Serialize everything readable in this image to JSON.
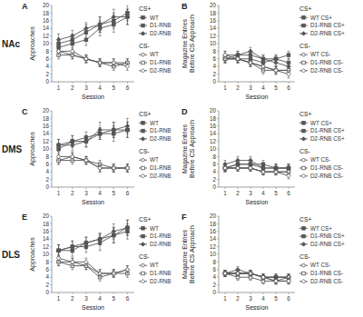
{
  "chart_data": [
    {
      "type": "line",
      "title": "A",
      "subtitle": "NAc",
      "xlabel": "Session",
      "ylabel": "Approaches",
      "x": [
        1,
        2,
        3,
        4,
        5,
        6
      ],
      "xlim": [
        0.5,
        6.5
      ],
      "xticks": [
        1,
        2,
        3,
        4,
        5,
        6
      ],
      "ylim": [
        0,
        20
      ],
      "yticks": [
        0,
        2,
        4,
        6,
        8,
        10,
        12,
        14,
        16,
        18,
        20
      ],
      "grid": false,
      "legend": "right",
      "annotations": [
        "CS+",
        "CS-"
      ],
      "series": [
        {
          "name": "WT",
          "color": "#555555",
          "marker": "square",
          "values": [
            9,
            10,
            11,
            14,
            15,
            17
          ],
          "errors": [
            1.5,
            1.5,
            1.5,
            2,
            2,
            2
          ]
        },
        {
          "name": "D1-RNB",
          "color": "#555555",
          "marker": "square",
          "values": [
            10,
            11,
            13,
            15,
            16,
            18
          ],
          "errors": [
            1.5,
            1.5,
            2,
            2,
            2,
            2
          ]
        },
        {
          "name": "D2-RNB",
          "color": "#555555",
          "marker": "diamond",
          "values": [
            11,
            12,
            14,
            15,
            17,
            17
          ],
          "errors": [
            1.5,
            1.5,
            1.5,
            2,
            2,
            2
          ]
        },
        {
          "name": "WT",
          "color": "#555555",
          "marker": "circle-open",
          "values": [
            8,
            7,
            6,
            5,
            5,
            5
          ],
          "errors": [
            1,
            1,
            1,
            1,
            1,
            1
          ]
        },
        {
          "name": "D1-RNB",
          "color": "#555555",
          "marker": "square-open",
          "values": [
            7,
            7,
            6,
            5,
            4,
            5
          ],
          "errors": [
            1,
            1,
            1,
            1,
            1,
            1
          ]
        },
        {
          "name": "D2-RNB",
          "color": "#555555",
          "marker": "diamond-open",
          "values": [
            8,
            8,
            6,
            5,
            5,
            4
          ],
          "errors": [
            1,
            1,
            1,
            1,
            1,
            1
          ]
        }
      ]
    },
    {
      "type": "line",
      "title": "B",
      "xlabel": "Session",
      "ylabel": "Magazine Entries\nBefore CS Approach",
      "x": [
        1,
        2,
        3,
        4,
        5,
        6
      ],
      "xlim": [
        0.5,
        6.5
      ],
      "xticks": [
        1,
        2,
        3,
        4,
        5,
        6
      ],
      "ylim": [
        0,
        20
      ],
      "yticks": [
        0,
        2,
        4,
        6,
        8,
        10,
        12,
        14,
        16,
        18,
        20
      ],
      "grid": false,
      "legend": "right",
      "annotations": [
        "CS+",
        "CS-"
      ],
      "series": [
        {
          "name": "WT CS+",
          "color": "#555555",
          "marker": "square",
          "values": [
            6,
            6,
            6,
            5,
            6,
            7
          ],
          "errors": [
            1,
            1,
            1,
            1,
            1,
            1
          ]
        },
        {
          "name": "D1-RNB CS+",
          "color": "#555555",
          "marker": "square",
          "values": [
            6,
            7,
            7,
            6,
            6,
            5
          ],
          "errors": [
            1,
            1,
            1,
            1,
            1,
            1
          ]
        },
        {
          "name": "D2-RNB CS+",
          "color": "#555555",
          "marker": "diamond",
          "values": [
            7,
            7,
            8,
            6,
            5,
            4
          ],
          "errors": [
            1,
            1,
            1,
            1,
            1,
            1
          ]
        },
        {
          "name": "WT CS-",
          "color": "#555555",
          "marker": "circle-open",
          "values": [
            6,
            6,
            5,
            4,
            3,
            3
          ],
          "errors": [
            1,
            1,
            1,
            1,
            1,
            1
          ]
        },
        {
          "name": "D1-RNB CS-",
          "color": "#555555",
          "marker": "square-open",
          "values": [
            6,
            6,
            5,
            3,
            3,
            3
          ],
          "errors": [
            1,
            1,
            1,
            1,
            1,
            1
          ]
        },
        {
          "name": "D2-RNB CS-",
          "color": "#555555",
          "marker": "diamond-open",
          "values": [
            7,
            6,
            5,
            4,
            3,
            2
          ],
          "errors": [
            1,
            1,
            1,
            1,
            1,
            1
          ]
        }
      ]
    },
    {
      "type": "line",
      "title": "C",
      "subtitle": "DMS",
      "xlabel": "Session",
      "ylabel": "Approaches",
      "x": [
        1,
        2,
        3,
        4,
        5,
        6
      ],
      "xlim": [
        0.5,
        6.5
      ],
      "xticks": [
        1,
        2,
        3,
        4,
        5,
        6
      ],
      "ylim": [
        0,
        20
      ],
      "yticks": [
        0,
        2,
        4,
        6,
        8,
        10,
        12,
        14,
        16,
        18,
        20
      ],
      "grid": false,
      "legend": "right",
      "annotations": [
        "CS+",
        "CS-"
      ],
      "series": [
        {
          "name": "WT",
          "color": "#555555",
          "marker": "square",
          "values": [
            11,
            12,
            12,
            14,
            15,
            15
          ],
          "errors": [
            1.5,
            1.5,
            1.5,
            1.5,
            2,
            2
          ]
        },
        {
          "name": "D1-RNB",
          "color": "#555555",
          "marker": "square",
          "values": [
            10,
            12,
            13,
            14,
            14,
            15
          ],
          "errors": [
            1.5,
            1.5,
            1.5,
            1.5,
            2,
            2
          ]
        },
        {
          "name": "D2-RNB",
          "color": "#555555",
          "marker": "diamond",
          "values": [
            11,
            11,
            12,
            15,
            15,
            16
          ],
          "errors": [
            1.5,
            1.5,
            1.5,
            2,
            2,
            2
          ]
        },
        {
          "name": "WT",
          "color": "#555555",
          "marker": "circle-open",
          "values": [
            7,
            8,
            7,
            5,
            5,
            5
          ],
          "errors": [
            1,
            1,
            1,
            1,
            1,
            1
          ]
        },
        {
          "name": "D1-RNB",
          "color": "#555555",
          "marker": "square-open",
          "values": [
            7,
            7,
            7,
            6,
            5,
            5
          ],
          "errors": [
            1,
            1,
            1,
            1,
            1,
            1
          ]
        },
        {
          "name": "D2-RNB",
          "color": "#555555",
          "marker": "diamond-open",
          "values": [
            8,
            8,
            7,
            5,
            5,
            5
          ],
          "errors": [
            1,
            1,
            1,
            1,
            1,
            1
          ]
        }
      ]
    },
    {
      "type": "line",
      "title": "D",
      "xlabel": "Session",
      "ylabel": "Magazine Entries\nBefore CS Approach",
      "x": [
        1,
        2,
        3,
        4,
        5,
        6
      ],
      "xlim": [
        0.5,
        6.5
      ],
      "xticks": [
        1,
        2,
        3,
        4,
        5,
        6
      ],
      "ylim": [
        0,
        20
      ],
      "yticks": [
        0,
        2,
        4,
        6,
        8,
        10,
        12,
        14,
        16,
        18,
        20
      ],
      "grid": false,
      "legend": "right",
      "annotations": [
        "CS+",
        "CS-"
      ],
      "series": [
        {
          "name": "WT CS+",
          "color": "#555555",
          "marker": "square",
          "values": [
            5,
            6,
            6,
            5,
            5,
            5
          ],
          "errors": [
            1,
            1,
            1,
            1,
            1,
            1
          ]
        },
        {
          "name": "D1-RNB CS+",
          "color": "#555555",
          "marker": "square",
          "values": [
            5,
            6,
            6,
            6,
            5,
            5
          ],
          "errors": [
            1,
            1,
            1,
            1,
            1,
            1
          ]
        },
        {
          "name": "D2-RNB CS+",
          "color": "#555555",
          "marker": "diamond",
          "values": [
            6,
            7,
            7,
            5,
            5,
            5
          ],
          "errors": [
            1,
            1,
            1,
            1,
            1,
            1
          ]
        },
        {
          "name": "WT CS-",
          "color": "#555555",
          "marker": "circle-open",
          "values": [
            5,
            5,
            5,
            4,
            4,
            4
          ],
          "errors": [
            0.8,
            0.8,
            0.8,
            0.8,
            0.8,
            0.8
          ]
        },
        {
          "name": "D1-RNB CS-",
          "color": "#555555",
          "marker": "square-open",
          "values": [
            5,
            5,
            5,
            4,
            4,
            4
          ],
          "errors": [
            0.8,
            0.8,
            0.8,
            0.8,
            0.8,
            0.8
          ]
        },
        {
          "name": "D2-RNB CS-",
          "color": "#555555",
          "marker": "diamond-open",
          "values": [
            5,
            5,
            5,
            4,
            4,
            3
          ],
          "errors": [
            0.8,
            0.8,
            0.8,
            0.8,
            0.8,
            0.8
          ]
        }
      ]
    },
    {
      "type": "line",
      "title": "E",
      "subtitle": "DLS",
      "xlabel": "Session",
      "ylabel": "Approaches",
      "x": [
        1,
        2,
        3,
        4,
        5,
        6
      ],
      "xlim": [
        0.5,
        6.5
      ],
      "xticks": [
        1,
        2,
        3,
        4,
        5,
        6
      ],
      "ylim": [
        0,
        20
      ],
      "yticks": [
        0,
        2,
        4,
        6,
        8,
        10,
        12,
        14,
        16,
        18,
        20
      ],
      "grid": false,
      "legend": "right",
      "annotations": [
        "CS+",
        "CS-"
      ],
      "series": [
        {
          "name": "WT",
          "color": "#555555",
          "marker": "square",
          "values": [
            11,
            11,
            13,
            14,
            15,
            16
          ],
          "errors": [
            1.5,
            1.5,
            1.5,
            1.5,
            2,
            2
          ]
        },
        {
          "name": "D1-RNB",
          "color": "#555555",
          "marker": "square",
          "values": [
            11,
            12,
            12,
            13,
            15,
            17
          ],
          "errors": [
            1.5,
            1.5,
            1.5,
            2,
            2,
            2
          ]
        },
        {
          "name": "D2-RNB",
          "color": "#555555",
          "marker": "diamond",
          "values": [
            11,
            12,
            13,
            14,
            16,
            17
          ],
          "errors": [
            1.5,
            1.5,
            1.5,
            1.5,
            2,
            2
          ]
        },
        {
          "name": "WT",
          "color": "#555555",
          "marker": "circle-open",
          "values": [
            8,
            8,
            7,
            5,
            5,
            6
          ],
          "errors": [
            1,
            1,
            1,
            1,
            1,
            1
          ]
        },
        {
          "name": "D1-RNB",
          "color": "#555555",
          "marker": "square-open",
          "values": [
            8,
            7,
            7,
            4,
            5,
            5
          ],
          "errors": [
            1,
            1,
            1,
            1,
            1,
            1
          ]
        },
        {
          "name": "D2-RNB",
          "color": "#555555",
          "marker": "diamond-open",
          "values": [
            9,
            8,
            8,
            5,
            5,
            6
          ],
          "errors": [
            1,
            1,
            1,
            1,
            1,
            1
          ]
        }
      ]
    },
    {
      "type": "line",
      "title": "F",
      "xlabel": "Session",
      "ylabel": "Magazine Entries\nBefore CS Approach",
      "x": [
        1,
        2,
        3,
        4,
        5,
        6
      ],
      "xlim": [
        0.5,
        6.5
      ],
      "xticks": [
        1,
        2,
        3,
        4,
        5,
        6
      ],
      "ylim": [
        0,
        20
      ],
      "yticks": [
        0,
        2,
        4,
        6,
        8,
        10,
        12,
        14,
        16,
        18,
        20
      ],
      "grid": false,
      "legend": "right",
      "annotations": [
        "CS+",
        "CS-"
      ],
      "series": [
        {
          "name": "WT CS+",
          "color": "#555555",
          "marker": "square",
          "values": [
            5,
            5,
            5,
            4,
            4,
            4
          ],
          "errors": [
            0.8,
            0.8,
            0.8,
            0.8,
            0.8,
            0.8
          ]
        },
        {
          "name": "D1-RNB CS+",
          "color": "#555555",
          "marker": "square",
          "values": [
            5,
            5,
            5,
            4,
            4,
            4
          ],
          "errors": [
            0.8,
            0.8,
            0.8,
            0.8,
            0.8,
            0.8
          ]
        },
        {
          "name": "D2-RNB CS+",
          "color": "#555555",
          "marker": "diamond",
          "values": [
            5,
            6,
            5,
            4,
            4,
            4
          ],
          "errors": [
            0.8,
            0.8,
            0.8,
            0.8,
            0.8,
            0.8
          ]
        },
        {
          "name": "WT CS-",
          "color": "#555555",
          "marker": "circle-open",
          "values": [
            5,
            5,
            5,
            4,
            3,
            4
          ],
          "errors": [
            0.8,
            0.8,
            0.8,
            0.8,
            0.8,
            0.8
          ]
        },
        {
          "name": "D1-RNB CS-",
          "color": "#555555",
          "marker": "square-open",
          "values": [
            5,
            4,
            4,
            3,
            3,
            3
          ],
          "errors": [
            0.8,
            0.8,
            0.8,
            0.8,
            0.8,
            0.8
          ]
        },
        {
          "name": "D2-RNB CS-",
          "color": "#555555",
          "marker": "diamond-open",
          "values": [
            5,
            5,
            5,
            4,
            3,
            3
          ],
          "errors": [
            0.8,
            0.8,
            0.8,
            0.8,
            0.8,
            0.8
          ]
        }
      ]
    }
  ]
}
